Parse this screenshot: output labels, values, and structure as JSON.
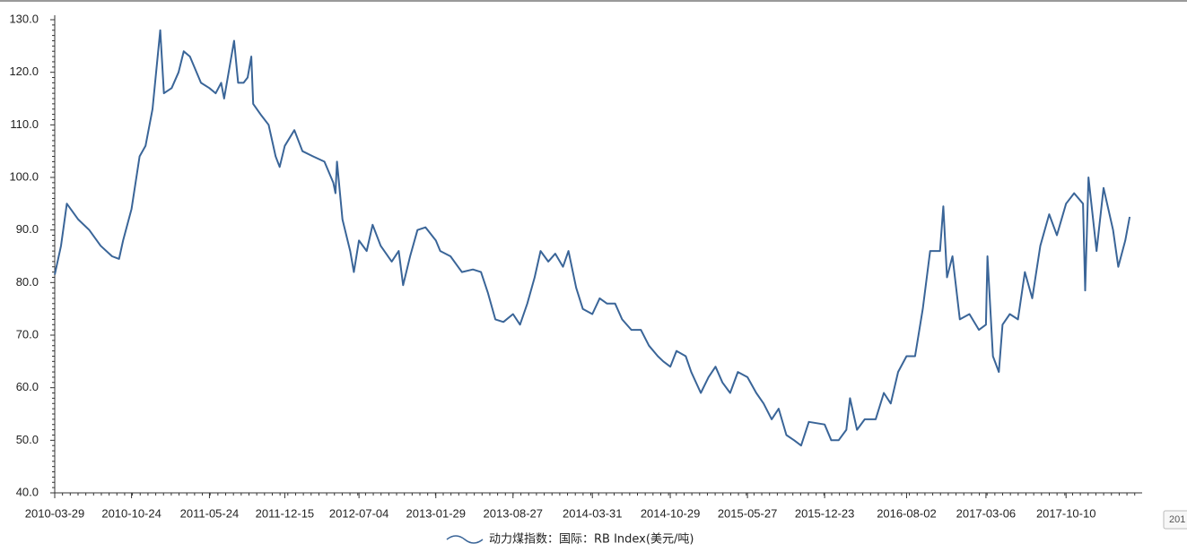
{
  "chart_data": {
    "type": "line",
    "x": [
      "2010-03-29",
      "2010-04-15",
      "2010-05-01",
      "2010-06-01",
      "2010-07-01",
      "2010-08-01",
      "2010-09-01",
      "2010-09-20",
      "2010-10-01",
      "2010-10-24",
      "2010-11-15",
      "2010-12-01",
      "2010-12-20",
      "2011-01-10",
      "2011-01-20",
      "2011-02-10",
      "2011-03-01",
      "2011-03-15",
      "2011-04-01",
      "2011-05-01",
      "2011-05-24",
      "2011-06-10",
      "2011-06-25",
      "2011-07-03",
      "2011-07-30",
      "2011-08-10",
      "2011-08-25",
      "2011-09-05",
      "2011-09-15",
      "2011-09-20",
      "2011-10-10",
      "2011-11-01",
      "2011-11-20",
      "2011-12-01",
      "2011-12-15",
      "2012-01-10",
      "2012-02-01",
      "2012-03-01",
      "2012-04-01",
      "2012-04-25",
      "2012-05-01",
      "2012-05-05",
      "2012-05-20",
      "2012-06-10",
      "2012-06-20",
      "2012-07-04",
      "2012-07-25",
      "2012-08-10",
      "2012-09-01",
      "2012-10-01",
      "2012-10-20",
      "2012-11-01",
      "2012-11-20",
      "2012-12-10",
      "2013-01-01",
      "2013-01-29",
      "2013-02-10",
      "2013-03-10",
      "2013-04-10",
      "2013-05-10",
      "2013-06-01",
      "2013-06-20",
      "2013-07-10",
      "2013-08-01",
      "2013-08-27",
      "2013-09-15",
      "2013-10-05",
      "2013-10-25",
      "2013-11-10",
      "2013-12-01",
      "2013-12-20",
      "2014-01-10",
      "2014-01-25",
      "2014-02-15",
      "2014-03-05",
      "2014-03-31",
      "2014-04-20",
      "2014-05-10",
      "2014-06-01",
      "2014-06-20",
      "2014-07-15",
      "2014-08-10",
      "2014-09-01",
      "2014-09-25",
      "2014-10-10",
      "2014-10-29",
      "2014-11-15",
      "2014-12-10",
      "2014-12-25",
      "2015-01-20",
      "2015-02-10",
      "2015-03-01",
      "2015-03-20",
      "2015-04-10",
      "2015-05-01",
      "2015-05-27",
      "2015-06-20",
      "2015-07-10",
      "2015-08-01",
      "2015-08-20",
      "2015-09-10",
      "2015-10-01",
      "2015-10-20",
      "2015-11-10",
      "2015-12-23",
      "2016-01-10",
      "2016-01-30",
      "2016-02-20",
      "2016-03-01",
      "2016-03-20",
      "2016-04-10",
      "2016-05-10",
      "2016-06-01",
      "2016-06-20",
      "2016-07-10",
      "2016-08-02",
      "2016-08-25",
      "2016-09-15",
      "2016-10-05",
      "2016-11-01",
      "2016-11-10",
      "2016-11-20",
      "2016-12-05",
      "2016-12-25",
      "2017-01-20",
      "2017-02-15",
      "2017-03-06",
      "2017-03-10",
      "2017-03-25",
      "2017-04-10",
      "2017-04-20",
      "2017-05-10",
      "2017-06-01",
      "2017-06-20",
      "2017-07-10",
      "2017-08-01",
      "2017-08-25",
      "2017-09-15",
      "2017-10-10",
      "2017-11-01",
      "2017-11-25",
      "2017-12-01",
      "2017-12-10",
      "2018-01-01",
      "2018-01-20",
      "2018-02-15",
      "2018-03-01",
      "2018-03-20",
      "2018-04-01"
    ],
    "series": [
      {
        "name": "动力煤指数：国际：RB Index(美元/吨)",
        "color": "#3a6598",
        "values": [
          81.5,
          87,
          95,
          92,
          90,
          87,
          85,
          84.5,
          88,
          94,
          104,
          106,
          113,
          128,
          116,
          117,
          120,
          124,
          123,
          118,
          117,
          116,
          118,
          115,
          126,
          118,
          118,
          119,
          123,
          114,
          112,
          110,
          104,
          102,
          106,
          109,
          105,
          104,
          103,
          99,
          97,
          103,
          92,
          86,
          82,
          88,
          86,
          91,
          87,
          84,
          86,
          79.5,
          85,
          90,
          90.5,
          88,
          86,
          85,
          82,
          82.5,
          82,
          78,
          73,
          72.5,
          74,
          72,
          76,
          81,
          86,
          84,
          85.5,
          83,
          86,
          79,
          75,
          74,
          77,
          76,
          76,
          73,
          71,
          71,
          68,
          66,
          65,
          64,
          67,
          66,
          63,
          59,
          62,
          64,
          61,
          59,
          63,
          62,
          59,
          57,
          54,
          56,
          51,
          50,
          49,
          53.5,
          53,
          50,
          50,
          52,
          58,
          52,
          54,
          54,
          59,
          57,
          63,
          66,
          66,
          75,
          86,
          86,
          94.5,
          81,
          85,
          73,
          74,
          71,
          72,
          85,
          66,
          63,
          72,
          74,
          73,
          82,
          77,
          87,
          93,
          89,
          95,
          97,
          95,
          78.5,
          100,
          86,
          98,
          90,
          83,
          88,
          92.5
        ]
      }
    ],
    "xlim": [
      "2010-03-29",
      "2018-05-05"
    ],
    "xticks": [
      "2010-03-29",
      "2010-10-24",
      "2011-05-24",
      "2011-12-15",
      "2012-07-04",
      "2013-01-29",
      "2013-08-27",
      "2014-03-31",
      "2014-10-29",
      "2015-05-27",
      "2015-12-23",
      "2016-08-02",
      "2017-03-06",
      "2017-10-10"
    ],
    "ylim": [
      40,
      130
    ],
    "yticks": [
      {
        "value": 40,
        "label": "40.0"
      },
      {
        "value": 50,
        "label": "50.0"
      },
      {
        "value": 60,
        "label": "60.0"
      },
      {
        "value": 70,
        "label": "70.0"
      },
      {
        "value": 80,
        "label": "80.0"
      },
      {
        "value": 90,
        "label": "90.0"
      },
      {
        "value": 100,
        "label": "100.0"
      },
      {
        "value": 110,
        "label": "110.0"
      },
      {
        "value": 120,
        "label": "120.0"
      },
      {
        "value": 130,
        "label": "130.0"
      }
    ],
    "grid": false,
    "legend": "bottom",
    "corner_label": "201"
  }
}
